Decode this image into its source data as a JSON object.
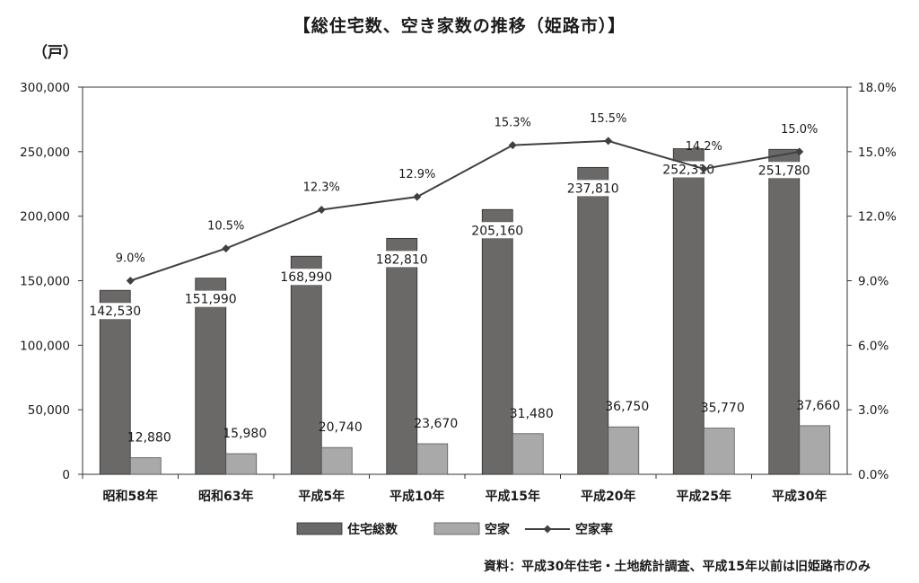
{
  "chart_data": {
    "type": "bar",
    "title": "【総住宅数、空き家数の推移（姫路市）】",
    "unit": "（戸）",
    "source": "資料：平成30年住宅・土地統計調査、平成15年以前は旧姫路市のみ",
    "categories": [
      "昭和58年",
      "昭和63年",
      "平成5年",
      "平成10年",
      "平成15年",
      "平成20年",
      "平成25年",
      "平成30年"
    ],
    "series": [
      {
        "name": "住宅総数",
        "type": "bar",
        "axis": "left",
        "color": "#6b6868",
        "values": [
          142530,
          151990,
          168990,
          182810,
          205160,
          237810,
          252310,
          251780
        ],
        "labels": [
          "142,530",
          "151,990",
          "168,990",
          "182,810",
          "205,160",
          "237,810",
          "252,310",
          "251,780"
        ]
      },
      {
        "name": "空家",
        "type": "bar",
        "axis": "left",
        "color": "#a9a9a9",
        "values": [
          12880,
          15980,
          20740,
          23670,
          31480,
          36750,
          35770,
          37660
        ],
        "labels": [
          "12,880",
          "15,980",
          "20,740",
          "23,670",
          "31,480",
          "36,750",
          "35,770",
          "37,660"
        ]
      },
      {
        "name": "空家率",
        "type": "line",
        "axis": "right",
        "color": "#404040",
        "values": [
          9.0,
          10.5,
          12.3,
          12.9,
          15.3,
          15.5,
          14.2,
          15.0
        ],
        "labels": [
          "9.0%",
          "10.5%",
          "12.3%",
          "12.9%",
          "15.3%",
          "15.5%",
          "14.2%",
          "15.0%"
        ]
      }
    ],
    "left_axis": {
      "ylim": [
        0,
        300000
      ],
      "ticks": [
        0,
        50000,
        100000,
        150000,
        200000,
        250000,
        300000
      ],
      "tick_labels": [
        "0",
        "50,000",
        "100,000",
        "150,000",
        "200,000",
        "250,000",
        "300,000"
      ]
    },
    "right_axis": {
      "ylim": [
        0,
        18
      ],
      "ticks": [
        0,
        3,
        6,
        9,
        12,
        15,
        18
      ],
      "tick_labels": [
        "0.0%",
        "3.0%",
        "6.0%",
        "9.0%",
        "12.0%",
        "15.0%",
        "18.0%"
      ]
    },
    "grid": false,
    "legend": "bottom"
  }
}
